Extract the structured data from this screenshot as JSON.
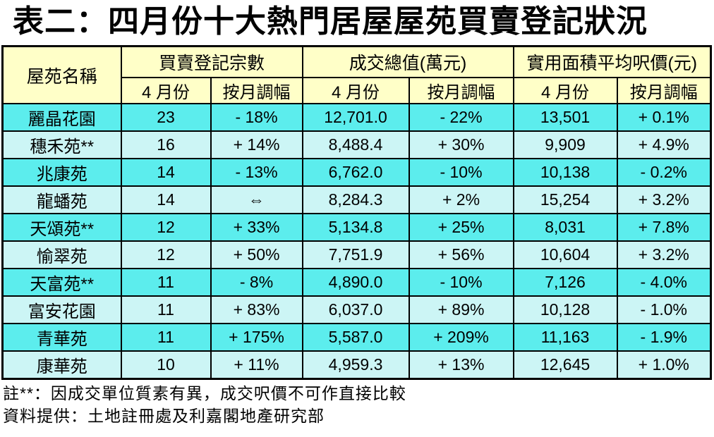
{
  "title": "表二：四月份十大熱門居屋屋苑買賣登記狀況",
  "table": {
    "header": {
      "estate": "屋苑名稱",
      "groups": [
        {
          "label": "買賣登記宗數",
          "sub": [
            "4 月份",
            "按月調幅"
          ]
        },
        {
          "label": "成交總值(萬元)",
          "sub": [
            "4 月份",
            "按月調幅"
          ]
        },
        {
          "label": "實用面積平均呎價(元)",
          "sub": [
            "4 月份",
            "按月調幅"
          ]
        }
      ]
    },
    "row_fields": [
      "estate",
      "reg_apr",
      "reg_mom",
      "value_apr",
      "value_mom",
      "psf_apr",
      "psf_mom"
    ],
    "rows": [
      {
        "estate": "麗晶花園",
        "reg_apr": "23",
        "reg_mom": "- 18%",
        "value_apr": "12,701.0",
        "value_mom": "- 22%",
        "psf_apr": "13,501",
        "psf_mom": "+ 0.1%"
      },
      {
        "estate": "穗禾苑**",
        "reg_apr": "16",
        "reg_mom": "+ 14%",
        "value_apr": "8,488.4",
        "value_mom": "+ 30%",
        "psf_apr": "9,909",
        "psf_mom": "+ 4.9%"
      },
      {
        "estate": "兆康苑",
        "reg_apr": "14",
        "reg_mom": "- 13%",
        "value_apr": "6,762.0",
        "value_mom": "- 10%",
        "psf_apr": "10,138",
        "psf_mom": "- 0.2%"
      },
      {
        "estate": "龍蟠苑",
        "reg_apr": "14",
        "reg_mom": "⇔",
        "value_apr": "8,284.3",
        "value_mom": "+ 2%",
        "psf_apr": "15,254",
        "psf_mom": "+ 3.2%"
      },
      {
        "estate": "天頌苑**",
        "reg_apr": "12",
        "reg_mom": "+ 33%",
        "value_apr": "5,134.8",
        "value_mom": "+ 25%",
        "psf_apr": "8,031",
        "psf_mom": "+ 7.8%"
      },
      {
        "estate": "愉翠苑",
        "reg_apr": "12",
        "reg_mom": "+ 50%",
        "value_apr": "7,751.9",
        "value_mom": "+ 56%",
        "psf_apr": "10,604",
        "psf_mom": "+ 3.2%"
      },
      {
        "estate": "天富苑**",
        "reg_apr": "11",
        "reg_mom": "- 8%",
        "value_apr": "4,890.0",
        "value_mom": "- 10%",
        "psf_apr": "7,126",
        "psf_mom": "- 4.0%"
      },
      {
        "estate": "富安花園",
        "reg_apr": "11",
        "reg_mom": "+ 83%",
        "value_apr": "6,037.0",
        "value_mom": "+ 89%",
        "psf_apr": "10,128",
        "psf_mom": "- 1.0%"
      },
      {
        "estate": "青華苑",
        "reg_apr": "11",
        "reg_mom": "+ 175%",
        "value_apr": "5,587.0",
        "value_mom": "+ 209%",
        "psf_apr": "11,163",
        "psf_mom": "- 1.9%"
      },
      {
        "estate": "康華苑",
        "reg_apr": "10",
        "reg_mom": "+ 11%",
        "value_apr": "4,959.3",
        "value_mom": "+ 13%",
        "psf_apr": "12,645",
        "psf_mom": "+ 1.0%"
      }
    ]
  },
  "notes": [
    "註**：因成交單位質素有異，成交呎價不可作直接比較",
    "資料提供：土地註冊處及利嘉閣地產研究部"
  ],
  "colors": {
    "header_bg": "#FFFFC8",
    "row_odd_bg": "#5CEDED",
    "row_even_bg": "#CCF5F5",
    "border": "#000000"
  }
}
